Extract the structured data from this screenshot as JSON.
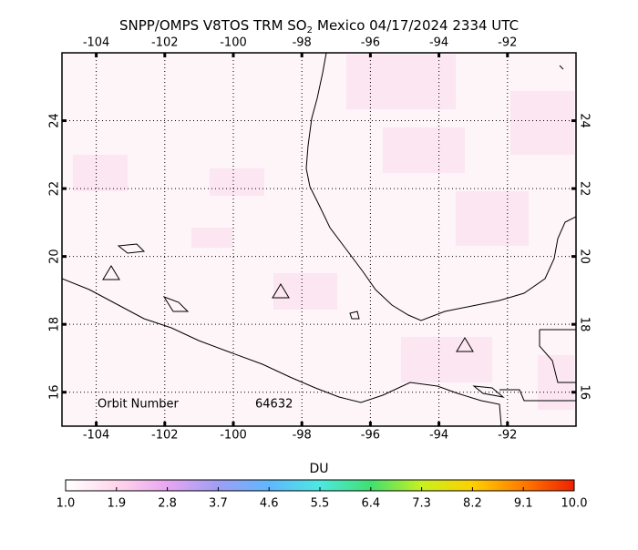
{
  "chart_data": {
    "type": "map",
    "title": {
      "main": "SNPP/OMPS V8TOS TRM SO",
      "subscript": "2",
      "rest": "Mexico 04/17/2024 2334 UTC"
    },
    "xlim": [
      -105,
      -90
    ],
    "ylim": [
      15,
      26
    ],
    "xticks": [
      -104,
      -102,
      -100,
      -98,
      -96,
      -94,
      -92
    ],
    "yticks": [
      16,
      18,
      20,
      22,
      24
    ],
    "grid": true,
    "orbit_label": "Orbit Number",
    "orbit_number": 64632,
    "colorbar": {
      "label": "DU",
      "lim": [
        1,
        10
      ],
      "colors": [
        "#ffffff",
        "#ffd6ec",
        "#e8a6f0",
        "#9e9ef5",
        "#5fb8ff",
        "#4de8e0",
        "#40e070",
        "#c8f020",
        "#ffd000",
        "#ff7a00",
        "#f02000"
      ],
      "ticks": [
        {
          "value": 1.0,
          "label": "1.0"
        },
        {
          "value": 1.9,
          "label": "1.9"
        },
        {
          "value": 2.8,
          "label": "2.8"
        },
        {
          "value": 3.7,
          "label": "3.7"
        },
        {
          "value": 4.6,
          "label": "4.6"
        },
        {
          "value": 5.5,
          "label": "5.5"
        },
        {
          "value": 6.4,
          "label": "6.4"
        },
        {
          "value": 7.3,
          "label": "7.3"
        },
        {
          "value": 8.2,
          "label": "8.2"
        },
        {
          "value": 9.1,
          "label": "9.1"
        },
        {
          "value": 10.0,
          "label": "10.0"
        }
      ]
    }
  }
}
